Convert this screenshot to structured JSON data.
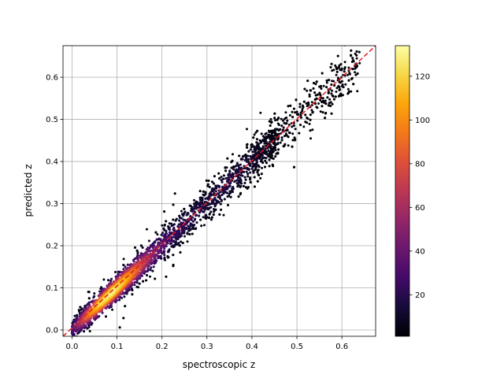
{
  "chart_data": {
    "type": "heatmap",
    "subtype": "density-scatter",
    "title": "",
    "xlabel": "spectroscopic z",
    "ylabel": "predicted z",
    "xlim": [
      -0.02,
      0.675
    ],
    "ylim": [
      -0.015,
      0.675
    ],
    "xticks": [
      0.0,
      0.1,
      0.2,
      0.3,
      0.4,
      0.5,
      0.6
    ],
    "yticks": [
      0.0,
      0.1,
      0.2,
      0.3,
      0.4,
      0.5,
      0.6
    ],
    "xtick_labels": [
      "0.0",
      "0.1",
      "0.2",
      "0.3",
      "0.4",
      "0.5",
      "0.6"
    ],
    "ytick_labels": [
      "0.0",
      "0.1",
      "0.2",
      "0.3",
      "0.4",
      "0.5",
      "0.6"
    ],
    "grid": true,
    "reference_line": {
      "style": "dashed",
      "color": "#e41a1c",
      "from": [
        -0.02,
        -0.015
      ],
      "to": [
        0.675,
        0.675
      ]
    },
    "density_ridge": [
      {
        "x": 0.0,
        "y_center": 0.01,
        "density": 30
      },
      {
        "x": 0.03,
        "y_center": 0.04,
        "density": 85
      },
      {
        "x": 0.06,
        "y_center": 0.07,
        "density": 120
      },
      {
        "x": 0.09,
        "y_center": 0.095,
        "density": 130
      },
      {
        "x": 0.12,
        "y_center": 0.12,
        "density": 110
      },
      {
        "x": 0.15,
        "y_center": 0.15,
        "density": 80
      },
      {
        "x": 0.18,
        "y_center": 0.18,
        "density": 50
      },
      {
        "x": 0.22,
        "y_center": 0.215,
        "density": 25
      },
      {
        "x": 0.3,
        "y_center": 0.3,
        "density": 15
      },
      {
        "x": 0.35,
        "y_center": 0.345,
        "density": 18
      },
      {
        "x": 0.4,
        "y_center": 0.395,
        "density": 12
      },
      {
        "x": 0.45,
        "y_center": 0.44,
        "density": 6
      },
      {
        "x": 0.5,
        "y_center": 0.49,
        "density": 3
      }
    ],
    "colorbar": {
      "colormap": "inferno",
      "range": [
        1,
        134
      ],
      "ticks": [
        20,
        40,
        60,
        80,
        100,
        120
      ],
      "tick_labels": [
        "20",
        "40",
        "60",
        "80",
        "100",
        "120"
      ]
    }
  }
}
